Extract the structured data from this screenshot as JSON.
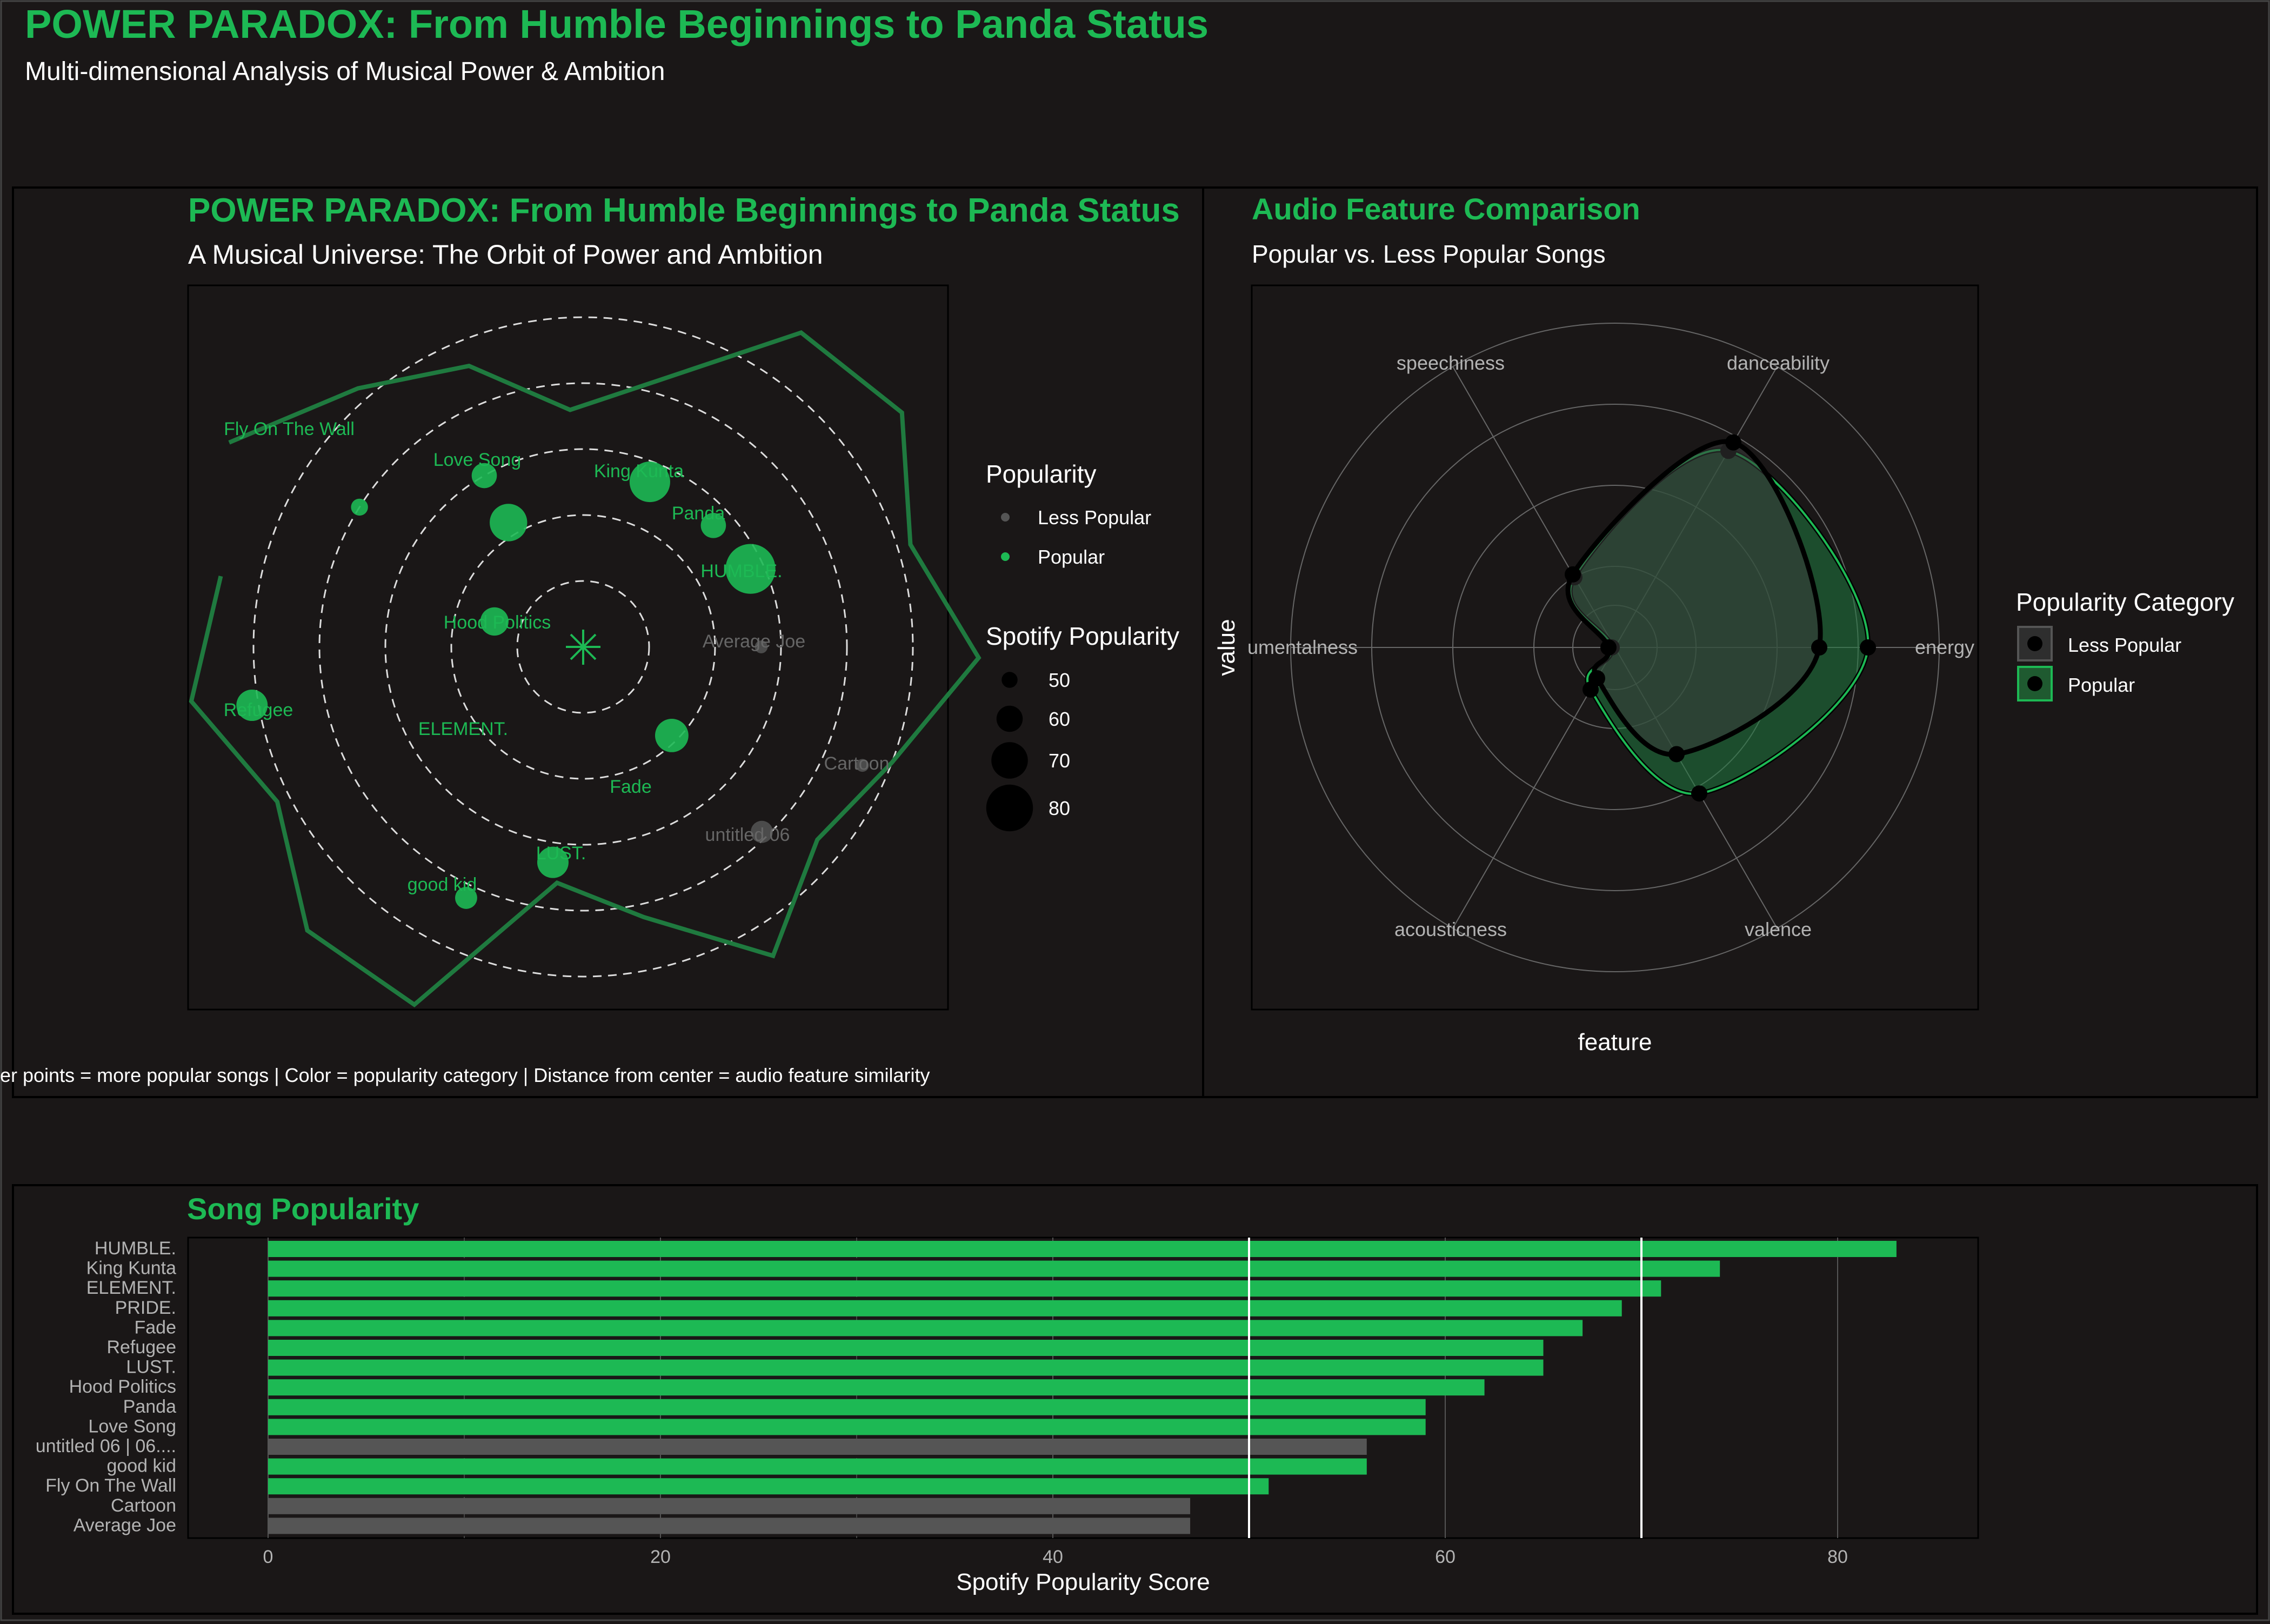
{
  "page": {
    "title": "POWER PARADOX: From Humble Beginnings to Panda Status",
    "subtitle": "Multi-dimensional Analysis of Musical Power & Ambition"
  },
  "colors": {
    "background": "#1a1717",
    "green": "#1db954",
    "dark_green": "#1f7a3f",
    "gray": "#555555",
    "title_green": "#1db954",
    "text": "#ffffff",
    "muted_text": "#b3b3b3"
  },
  "chart_data": [
    {
      "id": "orbit",
      "type": "scatter",
      "title": "POWER PARADOX: From Humble Beginnings to Panda Status",
      "subtitle": "A Musical Universe: The Orbit of Power and Ambition",
      "caption": "Larger points = more popular songs | Color = popularity category | Distance from center = audio feature similarity",
      "coord": "polar",
      "legend_popularity": {
        "title": "Popularity",
        "items": [
          "Less Popular",
          "Popular"
        ]
      },
      "legend_size": {
        "title": "Spotify Popularity",
        "values": [
          50,
          60,
          70,
          80
        ]
      },
      "songs": [
        {
          "name": "Fly On The Wall",
          "angle_deg": 148,
          "radius": 0.4,
          "popularity": 51,
          "category": "Popular"
        },
        {
          "name": "Love Song",
          "angle_deg": 120,
          "radius": 0.3,
          "popularity": 59,
          "category": "Popular"
        },
        {
          "name": "ELEMENT.",
          "angle_deg": 121,
          "radius": 0.22,
          "popularity": 71,
          "category": "Popular"
        },
        {
          "name": "King Kunta",
          "angle_deg": 68,
          "radius": 0.27,
          "popularity": 74,
          "category": "Popular"
        },
        {
          "name": "Panda",
          "angle_deg": 43,
          "radius": 0.27,
          "popularity": 59,
          "category": "Popular"
        },
        {
          "name": "HUMBLE.",
          "angle_deg": 25,
          "radius": 0.28,
          "popularity": 83,
          "category": "Popular"
        },
        {
          "name": "Hood Politics",
          "angle_deg": 164,
          "radius": 0.14,
          "popularity": 62,
          "category": "Popular"
        },
        {
          "name": "Average Joe",
          "angle_deg": 0,
          "radius": 0.27,
          "popularity": 47,
          "category": "Less Popular"
        },
        {
          "name": "Refugee",
          "angle_deg": 190,
          "radius": 0.51,
          "popularity": 65,
          "category": "Popular"
        },
        {
          "name": "Cartoon",
          "angle_deg": -23,
          "radius": 0.46,
          "popularity": 47,
          "category": "Less Popular"
        },
        {
          "name": "Fade",
          "angle_deg": -45,
          "radius": 0.19,
          "popularity": 67,
          "category": "Popular"
        },
        {
          "name": "untitled 06 | 06....",
          "angle_deg": -46,
          "radius": 0.39,
          "popularity": 56,
          "category": "Less Popular"
        },
        {
          "name": "LUST.",
          "angle_deg": -98,
          "radius": 0.33,
          "popularity": 65,
          "category": "Popular"
        },
        {
          "name": "good kid",
          "angle_deg": -115,
          "radius": 0.42,
          "popularity": 56,
          "category": "Popular"
        }
      ],
      "labels": [
        "Fly On The Wall",
        "Love Song",
        "King Kunta",
        "Panda",
        "HUMBLE.",
        "Hood Politics",
        "Average Joe",
        "Refugee",
        "ELEMENT.",
        "Cartoon",
        "Fade",
        "untitled 06",
        "LUST.",
        "good kid"
      ],
      "path_radius": [
        0.62,
        0.52,
        0.46,
        0.36,
        0.42,
        0.58,
        0.6,
        0.52,
        0.6,
        0.5,
        0.46,
        0.55,
        0.42,
        0.36,
        0.6,
        0.6,
        0.52,
        0.6,
        0.56
      ],
      "rings": [
        0.1,
        0.2,
        0.3,
        0.4,
        0.5
      ]
    },
    {
      "id": "radar",
      "type": "line",
      "coord": "polar",
      "title": "Audio Feature Comparison",
      "subtitle": "Popular vs. Less Popular Songs",
      "xlabel": "feature",
      "ylabel": "value",
      "features": [
        "energy",
        "danceability",
        "speechiness",
        "instrumentalness",
        "acousticness",
        "valence"
      ],
      "feature_labels": [
        "energy",
        "danceability",
        "speechiness",
        "umentalness",
        "acousticness",
        "valence"
      ],
      "legend": {
        "title": "Popularity Category",
        "items": [
          "Less Popular",
          "Popular"
        ]
      },
      "series": [
        {
          "name": "Popular",
          "values": [
            0.78,
            0.7,
            0.25,
            0.01,
            0.15,
            0.52
          ]
        },
        {
          "name": "Less Popular",
          "values": [
            0.63,
            0.73,
            0.26,
            0.02,
            0.11,
            0.38
          ]
        }
      ]
    },
    {
      "id": "bars",
      "type": "bar",
      "orientation": "horizontal",
      "title": "Song Popularity",
      "xlabel": "Spotify Popularity Score",
      "ylabel": "",
      "xlim": [
        0,
        87
      ],
      "xticks": [
        0,
        20,
        40,
        60,
        80
      ],
      "reference_lines": [
        50,
        70
      ],
      "categories": [
        "HUMBLE.",
        "King Kunta",
        "ELEMENT.",
        "PRIDE.",
        "Fade",
        "Refugee",
        "LUST.",
        "Hood Politics",
        "Panda",
        "Love Song",
        "untitled 06 | 06....",
        "good kid",
        "Fly On The Wall",
        "Cartoon",
        "Average Joe"
      ],
      "values": [
        83,
        74,
        71,
        69,
        67,
        65,
        65,
        62,
        59,
        59,
        56,
        56,
        51,
        47,
        47
      ],
      "category_of_bar": [
        "Popular",
        "Popular",
        "Popular",
        "Popular",
        "Popular",
        "Popular",
        "Popular",
        "Popular",
        "Popular",
        "Popular",
        "Less Popular",
        "Popular",
        "Popular",
        "Less Popular",
        "Less Popular"
      ]
    }
  ]
}
